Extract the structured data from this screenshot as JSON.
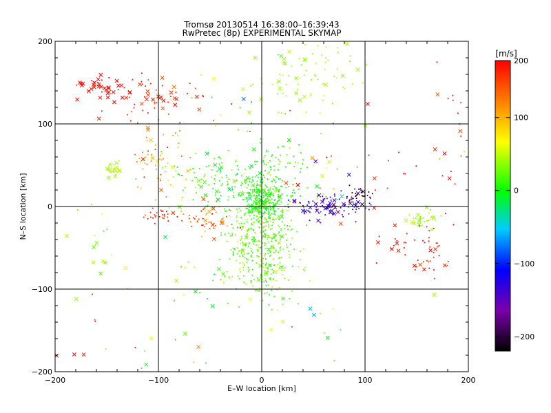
{
  "chart_data": {
    "type": "scatter",
    "title": "Tromsø 20130514 16:38:00–16:39:43",
    "subtitle": "RwPretec (8p) EXPERIMENTAL SKYMAP",
    "xlabel": "E–W location [km]",
    "ylabel": "N–S location [km]",
    "xlim": [
      -200,
      200
    ],
    "ylim": [
      -200,
      200
    ],
    "xticks": [
      -200,
      -100,
      0,
      100,
      200
    ],
    "yticks": [
      -200,
      -100,
      0,
      100,
      200
    ],
    "grid": true,
    "colorbar": {
      "label": "[m/s]",
      "min": -220,
      "max": 178,
      "ticks": [
        -200,
        -100,
        0,
        100,
        200
      ],
      "colormap": "rainbow (black-purple-blue-cyan-green-yellow-orange-red)"
    },
    "markers": {
      "small_points": "dot",
      "large_points": "x"
    },
    "clusters": [
      {
        "cx": 0,
        "cy": 5,
        "sx": 9,
        "sy": 12,
        "n": 260,
        "v": 5,
        "vs": 14,
        "big": 0.05
      },
      {
        "cx": 0,
        "cy": -45,
        "sx": 16,
        "sy": 32,
        "n": 420,
        "v": 25,
        "vs": 14,
        "big": 0.06
      },
      {
        "cx": 5,
        "cy": 30,
        "sx": 18,
        "sy": 20,
        "n": 180,
        "v": 8,
        "vs": 16,
        "big": 0.06
      },
      {
        "cx": -50,
        "cy": 30,
        "sx": 22,
        "sy": 22,
        "n": 100,
        "v": 12,
        "vs": 20,
        "big": 0.15
      },
      {
        "cx": 40,
        "cy": 160,
        "sx": 25,
        "sy": 25,
        "n": 90,
        "v": 42,
        "vs": 8,
        "big": 0.25
      },
      {
        "cx": -155,
        "cy": 145,
        "sx": 10,
        "sy": 8,
        "n": 40,
        "v": 175,
        "vs": 6,
        "big": 0.65
      },
      {
        "cx": -105,
        "cy": 130,
        "sx": 22,
        "sy": 14,
        "n": 55,
        "v": 160,
        "vs": 14,
        "big": 0.35
      },
      {
        "cx": -100,
        "cy": 55,
        "sx": 14,
        "sy": 22,
        "n": 60,
        "v": 110,
        "vs": 30,
        "big": 0.15
      },
      {
        "cx": -55,
        "cy": -15,
        "sx": 12,
        "sy": 10,
        "n": 50,
        "v": 135,
        "vs": 25,
        "big": 0.2
      },
      {
        "cx": -95,
        "cy": -10,
        "sx": 12,
        "sy": 5,
        "n": 30,
        "v": 160,
        "vs": 15,
        "big": 0.1
      },
      {
        "cx": 65,
        "cy": 0,
        "sx": 18,
        "sy": 7,
        "n": 90,
        "v": -145,
        "vs": 25,
        "big": 0.3
      },
      {
        "cx": 90,
        "cy": 10,
        "sx": 8,
        "sy": 8,
        "n": 40,
        "v": -200,
        "vs": 15,
        "big": 0.2
      },
      {
        "cx": -143,
        "cy": 45,
        "sx": 4,
        "sy": 4,
        "n": 25,
        "v": 45,
        "vs": 5,
        "big": 0.3
      },
      {
        "cx": 155,
        "cy": -15,
        "sx": 10,
        "sy": 6,
        "n": 35,
        "v": 40,
        "vs": 8,
        "big": 0.2
      },
      {
        "cx": 165,
        "cy": -55,
        "sx": 12,
        "sy": 18,
        "n": 35,
        "v": 165,
        "vs": 12,
        "big": 0.2
      },
      {
        "cx": 130,
        "cy": -45,
        "sx": 12,
        "sy": 8,
        "n": 15,
        "v": 175,
        "vs": 5,
        "big": 0.2
      },
      {
        "cx": 0,
        "cy": -150,
        "sx": 90,
        "sy": 40,
        "n": 25,
        "v": 40,
        "vs": 60,
        "big": 0.3
      },
      {
        "cx": -170,
        "cy": -40,
        "sx": 20,
        "sy": 50,
        "n": 18,
        "v": 40,
        "vs": 20,
        "big": 0.4
      },
      {
        "cx": -170,
        "cy": -160,
        "sx": 25,
        "sy": 30,
        "n": 8,
        "v": 170,
        "vs": 10,
        "big": 0.5
      },
      {
        "cx": 185,
        "cy": 80,
        "sx": 10,
        "sy": 60,
        "n": 18,
        "v": 170,
        "vs": 40,
        "big": 0.3
      },
      {
        "cx": 130,
        "cy": 50,
        "sx": 40,
        "sy": 50,
        "n": 15,
        "v": 170,
        "vs": 15,
        "big": 0.2
      },
      {
        "cx": 60,
        "cy": 30,
        "sx": 35,
        "sy": 25,
        "n": 30,
        "v": 80,
        "vs": 90,
        "big": 0.35
      },
      {
        "cx": -30,
        "cy": 120,
        "sx": 50,
        "sy": 30,
        "n": 25,
        "v": 80,
        "vs": 60,
        "big": 0.25
      },
      {
        "cx": -40,
        "cy": -90,
        "sx": 40,
        "sy": 25,
        "n": 25,
        "v": 30,
        "vs": 40,
        "big": 0.3
      }
    ]
  }
}
